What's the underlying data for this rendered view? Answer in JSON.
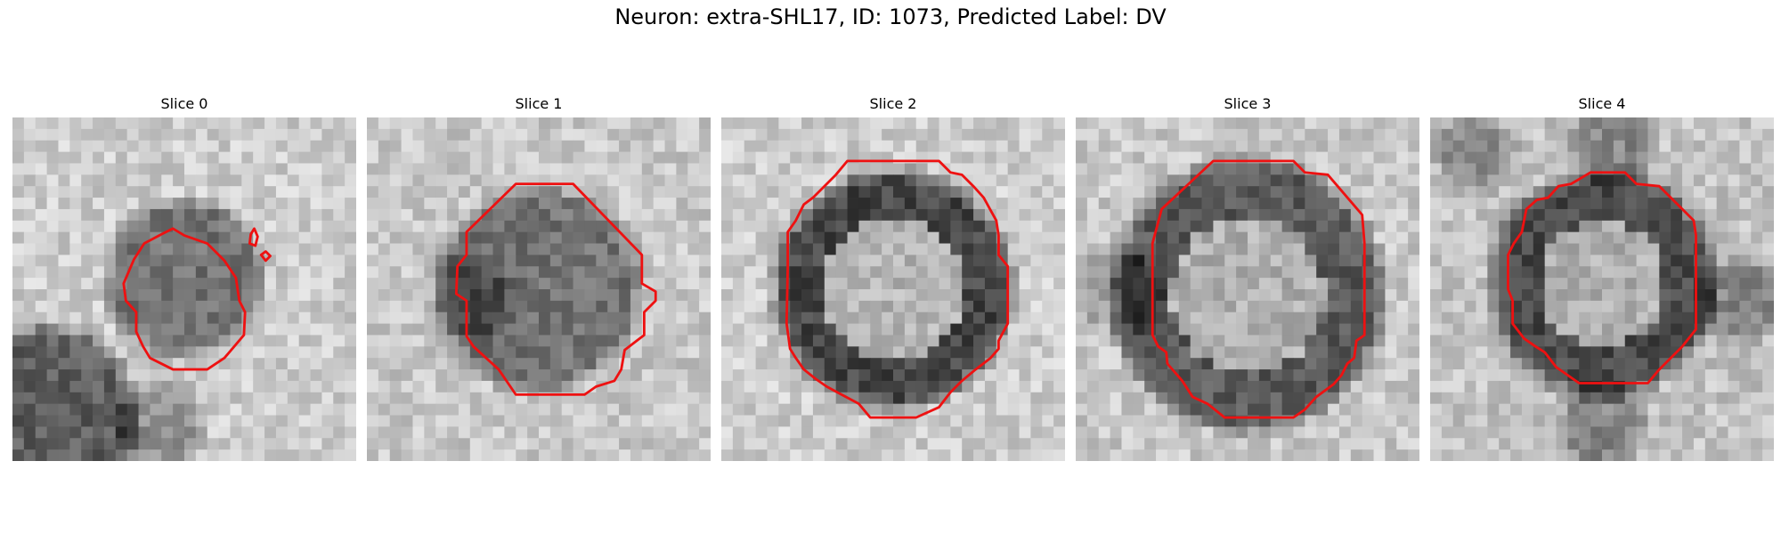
{
  "title": "Neuron: extra-SHL17, ID: 1073, Predicted Label: DV",
  "panels": [
    {
      "label": "Slice 0"
    },
    {
      "label": "Slice 1"
    },
    {
      "label": "Slice 2"
    },
    {
      "label": "Slice 3"
    },
    {
      "label": "Slice 4"
    }
  ],
  "colors": {
    "contour": "#ee1111",
    "background": "#ffffff"
  }
}
